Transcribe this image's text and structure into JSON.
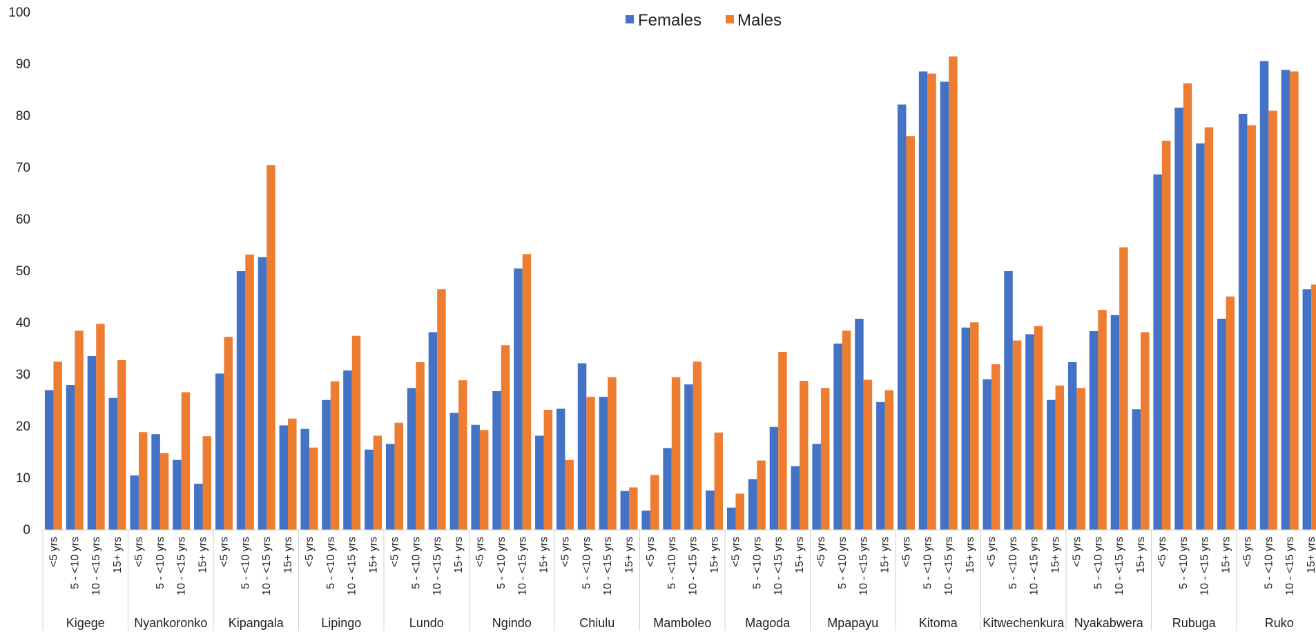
{
  "chart_data": {
    "type": "bar",
    "title": "",
    "xlabel": "",
    "ylabel": "",
    "ylim": [
      0,
      100
    ],
    "yticks": [
      0,
      10,
      20,
      30,
      40,
      50,
      60,
      70,
      80,
      90,
      100
    ],
    "grid": false,
    "legend_position": "top-center",
    "subcategories": [
      "<5 yrs",
      "5 - <10 yrs",
      "10 - <15 yrs",
      "15+ yrs"
    ],
    "groups": [
      "Kigege",
      "Nyankoronko",
      "Kipangala",
      "Lipingo",
      "Lundo",
      "Ngindo",
      "Chiulu",
      "Mamboleo",
      "Magoda",
      "Mpapayu",
      "Kitoma",
      "Kitwechenkura",
      "Nyakabwera",
      "Rubuga",
      "Ruko"
    ],
    "series": [
      {
        "name": "Females",
        "color": "#4472C4",
        "values": [
          27,
          28,
          33.6,
          25.5,
          10.5,
          18.5,
          13.5,
          8.9,
          30.2,
          50,
          52.7,
          20.2,
          19.5,
          25.1,
          30.8,
          15.5,
          16.6,
          27.4,
          38.2,
          22.6,
          20.3,
          26.8,
          50.5,
          18.2,
          23.4,
          32.2,
          25.7,
          7.5,
          3.7,
          15.8,
          28.1,
          7.6,
          4.3,
          9.8,
          19.9,
          12.3,
          16.6,
          36,
          40.8,
          24.7,
          82.2,
          88.6,
          86.6,
          39.1,
          29.1,
          50,
          37.8,
          25.1,
          32.4,
          38.4,
          41.5,
          23.3,
          68.7,
          81.6,
          74.7,
          40.8,
          80.4,
          90.6,
          88.9,
          46.5
        ]
      },
      {
        "name": "Males",
        "color": "#ED7D31",
        "values": [
          32.5,
          38.5,
          39.8,
          32.8,
          18.9,
          14.8,
          26.6,
          18.1,
          37.3,
          53.2,
          70.5,
          21.5,
          15.9,
          28.7,
          37.5,
          18.2,
          20.7,
          32.4,
          46.5,
          28.9,
          19.3,
          35.7,
          53.3,
          23.2,
          13.5,
          25.7,
          29.5,
          8.2,
          10.6,
          29.5,
          32.5,
          18.8,
          7,
          13.4,
          34.4,
          28.8,
          27.4,
          38.5,
          29,
          27,
          76.1,
          88.2,
          91.5,
          40.1,
          32,
          36.6,
          39.4,
          27.9,
          27.4,
          42.5,
          54.6,
          38.2,
          75.2,
          86.3,
          77.8,
          45.1,
          78.2,
          81,
          88.6,
          47.4
        ]
      }
    ]
  }
}
